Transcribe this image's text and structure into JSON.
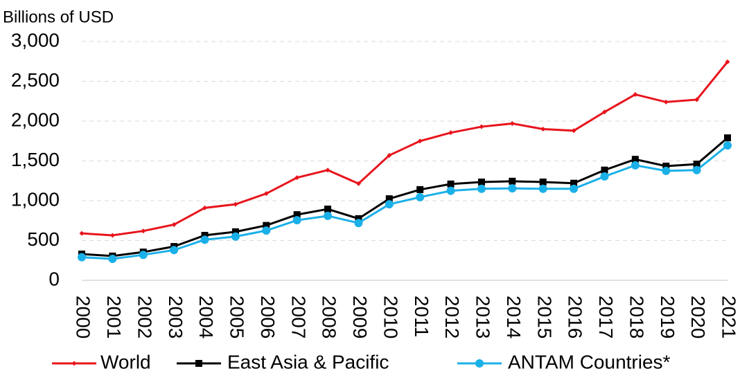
{
  "chart_data": {
    "type": "line",
    "y_axis_label": "Billions of USD",
    "categories": [
      "2000",
      "2001",
      "2002",
      "2003",
      "2004",
      "2005",
      "2006",
      "2007",
      "2008",
      "2009",
      "2010",
      "2011",
      "2012",
      "2013",
      "2014",
      "2015",
      "2016",
      "2017",
      "2018",
      "2019",
      "2020",
      "2021"
    ],
    "series": [
      {
        "name": "World",
        "color": "#e8141c",
        "marker": "diamond",
        "values": [
          590,
          565,
          620,
          700,
          910,
          955,
          1090,
          1290,
          1385,
          1215,
          1570,
          1750,
          1855,
          1930,
          1970,
          1900,
          1880,
          2115,
          2335,
          2240,
          2270,
          2745
        ]
      },
      {
        "name": "East Asia & Pacific",
        "color": "#000000",
        "marker": "square",
        "values": [
          330,
          305,
          355,
          425,
          565,
          610,
          690,
          825,
          895,
          775,
          1025,
          1140,
          1210,
          1235,
          1245,
          1235,
          1220,
          1385,
          1520,
          1435,
          1460,
          1790
        ]
      },
      {
        "name": "ANTAM Countries*",
        "color": "#1ab0e8",
        "marker": "circle",
        "values": [
          290,
          270,
          320,
          380,
          510,
          550,
          625,
          755,
          810,
          720,
          955,
          1045,
          1125,
          1150,
          1155,
          1150,
          1150,
          1305,
          1445,
          1375,
          1385,
          1695
        ]
      }
    ],
    "ylim": [
      0,
      3000
    ],
    "yticks": [
      0,
      500,
      {
        "value": 1000,
        "label": "1,000"
      },
      {
        "value": 1500,
        "label": "1,500"
      },
      {
        "value": 2000,
        "label": "2,000"
      },
      {
        "value": 2500,
        "label": "2,500"
      },
      {
        "value": 3000,
        "label": "3,000"
      }
    ],
    "grid": true,
    "legend": "bottom"
  }
}
